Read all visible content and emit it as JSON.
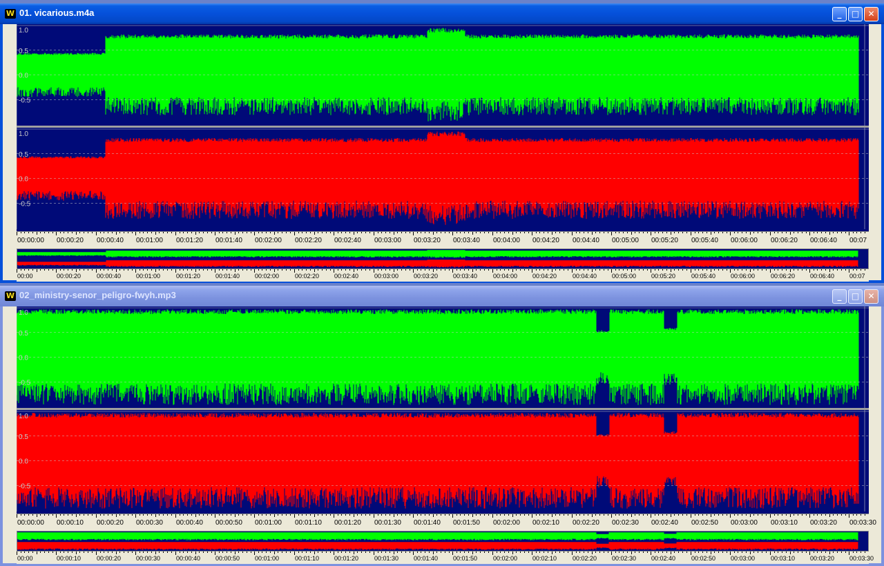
{
  "windows": [
    {
      "title": "01. vicarious.m4a",
      "active": true,
      "app_icon": "W",
      "amplitude_labels": [
        "1.0",
        "0.5",
        "0.0",
        "-0.5"
      ],
      "time_labels": [
        "00:00:00",
        "00:00:20",
        "00:00:40",
        "00:01:00",
        "00:01:20",
        "00:01:40",
        "00:02:00",
        "00:02:20",
        "00:02:40",
        "00:03:00",
        "00:03:20",
        "00:03:40",
        "00:04:00",
        "00:04:20",
        "00:04:40",
        "00:05:00",
        "00:05:20",
        "00:05:40",
        "00:06:00",
        "00:06:20",
        "00:06:40",
        "00:07"
      ],
      "overview_time_labels": [
        "00:00",
        "00:00:20",
        "00:00:40",
        "00:01:00",
        "00:01:20",
        "00:01:40",
        "00:02:00",
        "00:02:20",
        "00:02:40",
        "00:03:00",
        "00:03:20",
        "00:03:40",
        "00:04:00",
        "00:04:20",
        "00:04:40",
        "00:05:00",
        "00:05:20",
        "00:05:40",
        "00:06:00",
        "00:06:20",
        "00:06:40",
        "00:07"
      ]
    },
    {
      "title": "02_ministry-senor_peligro-fwyh.mp3",
      "active": false,
      "app_icon": "W",
      "amplitude_labels": [
        "1.0",
        "0.5",
        "0.0",
        "-0.5"
      ],
      "time_labels": [
        "00:00:00",
        "00:00:10",
        "00:00:20",
        "00:00:30",
        "00:00:40",
        "00:00:50",
        "00:01:00",
        "00:01:10",
        "00:01:20",
        "00:01:30",
        "00:01:40",
        "00:01:50",
        "00:02:00",
        "00:02:10",
        "00:02:20",
        "00:02:30",
        "00:02:40",
        "00:02:50",
        "00:03:00",
        "00:03:10",
        "00:03:20",
        "00:03:30"
      ],
      "overview_time_labels": [
        "00:00",
        "00:00:10",
        "00:00:20",
        "00:00:30",
        "00:00:40",
        "00:00:50",
        "00:01:00",
        "00:01:10",
        "00:01:20",
        "00:01:30",
        "00:01:40",
        "00:01:50",
        "00:02:00",
        "00:02:10",
        "00:02:20",
        "00:02:30",
        "00:02:40",
        "00:02:50",
        "00:03:00",
        "00:03:10",
        "00:03:20",
        "00:03:30"
      ]
    }
  ],
  "title_buttons": {
    "minimize": "_",
    "maximize": "□",
    "close": "✕"
  },
  "colors": {
    "background": "#000a78",
    "left_channel": "#00ff00",
    "right_channel": "#ff0000",
    "grid": "#c8c8c8",
    "label": "#c8c8c8"
  }
}
